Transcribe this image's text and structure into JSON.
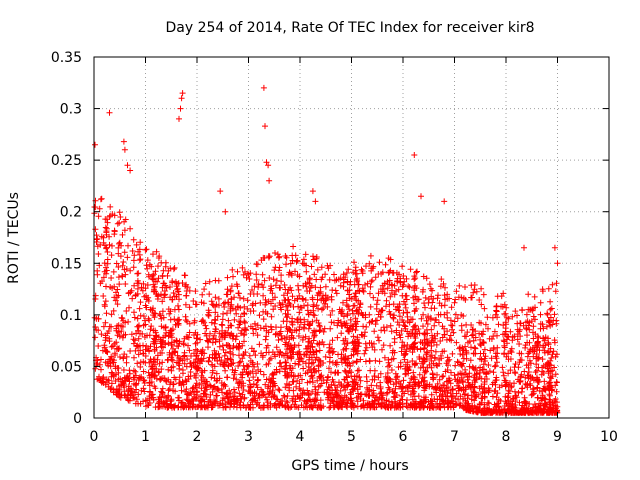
{
  "chart_data": {
    "type": "scatter",
    "title": "Day 254 of 2014, Rate Of TEC Index for receiver kir8",
    "xlabel": "GPS time / hours",
    "ylabel": "ROTI / TECUs",
    "xlim": [
      0,
      10
    ],
    "ylim": [
      0,
      0.35
    ],
    "x_ticks": [
      0,
      1,
      2,
      3,
      4,
      5,
      6,
      7,
      8,
      9,
      10
    ],
    "x_tick_labels": [
      "0",
      "1",
      "2",
      "3",
      "4",
      "5",
      "6",
      "7",
      "8",
      "9",
      "10"
    ],
    "y_ticks": [
      0,
      0.05,
      0.1,
      0.15,
      0.2,
      0.25,
      0.3,
      0.35
    ],
    "y_tick_labels": [
      "0",
      "0.05",
      "0.1",
      "0.15",
      "0.2",
      "0.25",
      "0.3",
      "0.35"
    ],
    "grid": true,
    "marker": "+",
    "color": "#ff0000",
    "series": [
      {
        "name": "ROTI",
        "x_range": [
          0,
          9
        ],
        "note": "dense '+' cloud; values estimated from gridlines",
        "envelope": [
          {
            "x": 0.0,
            "low": 0.04,
            "high": 0.22
          },
          {
            "x": 0.5,
            "low": 0.02,
            "high": 0.2
          },
          {
            "x": 1.0,
            "low": 0.01,
            "high": 0.17
          },
          {
            "x": 1.5,
            "low": 0.01,
            "high": 0.15
          },
          {
            "x": 2.0,
            "low": 0.01,
            "high": 0.13
          },
          {
            "x": 2.5,
            "low": 0.01,
            "high": 0.14
          },
          {
            "x": 3.0,
            "low": 0.01,
            "high": 0.15
          },
          {
            "x": 3.5,
            "low": 0.01,
            "high": 0.16
          },
          {
            "x": 4.0,
            "low": 0.01,
            "high": 0.17
          },
          {
            "x": 4.5,
            "low": 0.01,
            "high": 0.15
          },
          {
            "x": 5.0,
            "low": 0.01,
            "high": 0.15
          },
          {
            "x": 5.5,
            "low": 0.01,
            "high": 0.16
          },
          {
            "x": 6.0,
            "low": 0.01,
            "high": 0.15
          },
          {
            "x": 6.5,
            "low": 0.01,
            "high": 0.14
          },
          {
            "x": 7.0,
            "low": 0.01,
            "high": 0.13
          },
          {
            "x": 7.5,
            "low": 0.005,
            "high": 0.13
          },
          {
            "x": 8.0,
            "low": 0.005,
            "high": 0.12
          },
          {
            "x": 8.5,
            "low": 0.005,
            "high": 0.12
          },
          {
            "x": 9.0,
            "low": 0.005,
            "high": 0.14
          }
        ],
        "notable_points": [
          {
            "x": 0.02,
            "y": 0.265
          },
          {
            "x": 0.3,
            "y": 0.296
          },
          {
            "x": 0.58,
            "y": 0.268
          },
          {
            "x": 0.6,
            "y": 0.26
          },
          {
            "x": 0.65,
            "y": 0.245
          },
          {
            "x": 0.7,
            "y": 0.24
          },
          {
            "x": 1.65,
            "y": 0.29
          },
          {
            "x": 1.68,
            "y": 0.3
          },
          {
            "x": 1.7,
            "y": 0.31
          },
          {
            "x": 1.72,
            "y": 0.315
          },
          {
            "x": 3.3,
            "y": 0.32
          },
          {
            "x": 3.32,
            "y": 0.283
          },
          {
            "x": 3.35,
            "y": 0.248
          },
          {
            "x": 3.38,
            "y": 0.245
          },
          {
            "x": 3.4,
            "y": 0.23
          },
          {
            "x": 2.45,
            "y": 0.22
          },
          {
            "x": 2.55,
            "y": 0.2
          },
          {
            "x": 4.25,
            "y": 0.22
          },
          {
            "x": 4.3,
            "y": 0.21
          },
          {
            "x": 6.22,
            "y": 0.255
          },
          {
            "x": 6.35,
            "y": 0.215
          },
          {
            "x": 6.8,
            "y": 0.21
          },
          {
            "x": 8.35,
            "y": 0.165
          },
          {
            "x": 8.95,
            "y": 0.165
          },
          {
            "x": 9.0,
            "y": 0.15
          }
        ]
      }
    ]
  }
}
